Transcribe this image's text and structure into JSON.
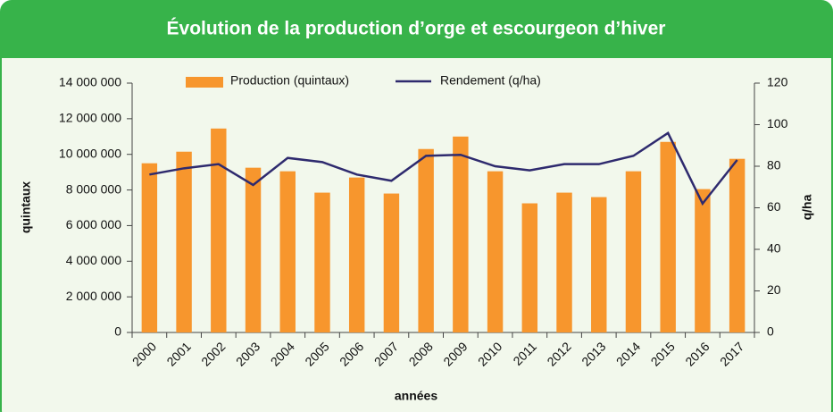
{
  "chart_data": {
    "type": "bar",
    "title": "Évolution de la production d’orge et escourgeon d’hiver",
    "x_label": "années",
    "y_label": "quintaux",
    "y2_label": "q/ha",
    "categories": [
      "2000",
      "2001",
      "2002",
      "2003",
      "2004",
      "2005",
      "2006",
      "2007",
      "2008",
      "2009",
      "2010",
      "2011",
      "2012",
      "2013",
      "2014",
      "2015",
      "2016",
      "2017"
    ],
    "series": [
      {
        "name": "Production (quintaux)",
        "type": "bar",
        "color": "#f7962d",
        "values": [
          9500000,
          10150000,
          11450000,
          9250000,
          9050000,
          7850000,
          8700000,
          7800000,
          10300000,
          11000000,
          9050000,
          7250000,
          7850000,
          7600000,
          9050000,
          10700000,
          8050000,
          9750000
        ]
      },
      {
        "name": "Rendement (q/ha)",
        "type": "line",
        "axis": "y2",
        "color": "#2e2a6e",
        "values": [
          76,
          79,
          81,
          71,
          84,
          82,
          76,
          73,
          85,
          85.5,
          80,
          78,
          81,
          81,
          85,
          96,
          62,
          83
        ]
      }
    ],
    "ylim": [
      0,
      14000000
    ],
    "yticks": [
      {
        "value": 0,
        "label": "0"
      },
      {
        "value": 2000000,
        "label": "2 000 000"
      },
      {
        "value": 4000000,
        "label": "4 000 000"
      },
      {
        "value": 6000000,
        "label": "6 000 000"
      },
      {
        "value": 8000000,
        "label": "8 000 000"
      },
      {
        "value": 10000000,
        "label": "10 000 000"
      },
      {
        "value": 12000000,
        "label": "12 000 000"
      },
      {
        "value": 14000000,
        "label": "14 000 000"
      }
    ],
    "y2lim": [
      0,
      120
    ],
    "y2ticks": [
      0,
      20,
      40,
      60,
      80,
      100,
      120
    ],
    "legend": "top"
  }
}
